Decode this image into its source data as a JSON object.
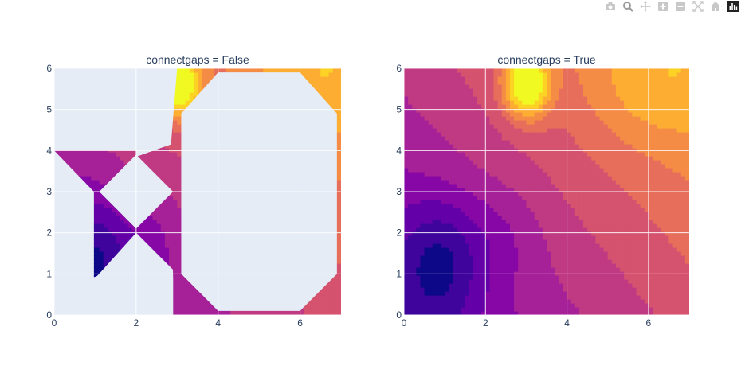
{
  "modebar": {
    "buttons": [
      {
        "name": "camera-icon",
        "color": "#c8c8c8"
      },
      {
        "name": "zoom-icon",
        "color": "#9b9b9b"
      },
      {
        "name": "pan-icon",
        "color": "#c8c8c8"
      },
      {
        "name": "zoom-in-icon",
        "color": "#c8c8c8"
      },
      {
        "name": "zoom-out-icon",
        "color": "#c8c8c8"
      },
      {
        "name": "autoscale-icon",
        "color": "#c8c8c8"
      },
      {
        "name": "reset-axes-icon",
        "color": "#c8c8c8"
      },
      {
        "name": "plotly-logo-icon",
        "color": "#222222"
      }
    ]
  },
  "chart_data": [
    {
      "type": "contour",
      "title": "connectgaps = False",
      "xlabel": "",
      "ylabel": "",
      "xlim": [
        0,
        7
      ],
      "ylim": [
        0,
        6
      ],
      "xticks": [
        0,
        2,
        4,
        6
      ],
      "yticks": [
        0,
        1,
        2,
        3,
        4,
        5,
        6
      ],
      "grid": true,
      "colorscale": "plasma",
      "connectgaps": false
    },
    {
      "type": "contour",
      "title": "connectgaps = True",
      "xlabel": "",
      "ylabel": "",
      "xlim": [
        0,
        7
      ],
      "ylim": [
        0,
        6
      ],
      "xticks": [
        0,
        2,
        4,
        6
      ],
      "yticks": [
        0,
        1,
        2,
        3,
        4,
        5,
        6
      ],
      "grid": true,
      "colorscale": "plasma",
      "connectgaps": true
    }
  ]
}
